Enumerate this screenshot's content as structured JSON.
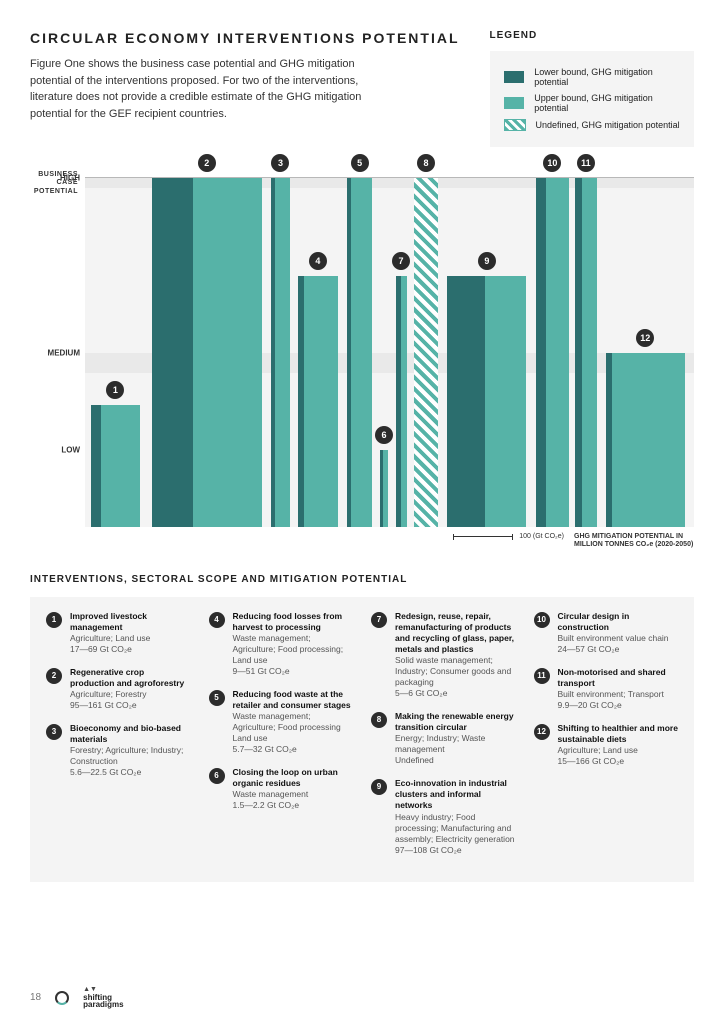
{
  "header": {
    "title": "CIRCULAR ECONOMY INTERVENTIONS POTENTIAL",
    "intro": "Figure One shows the business case potential and GHG mitigation potential of the interventions proposed. For two of the interventions, literature does not provide a credible estimate of the GHG mitigation potential for the GEF recipient countries."
  },
  "legend": {
    "title": "LEGEND",
    "items": [
      {
        "swatch": "dark",
        "label": "Lower bound, GHG mitigation potential"
      },
      {
        "swatch": "light",
        "label": "Upper bound, GHG mitigation potential"
      },
      {
        "swatch": "hatch",
        "label": "Undefined, GHG mitigation potential"
      }
    ]
  },
  "chart": {
    "y_axis_label": "BUSINESS CASE POTENTIAL",
    "y_ticks": [
      {
        "label": "HIGH",
        "pct": 0
      },
      {
        "label": "MEDIUM",
        "pct": 50
      },
      {
        "label": "LOW",
        "pct": 78
      }
    ],
    "shaded_bands": [
      {
        "top_pct": 0,
        "height_pct": 3
      },
      {
        "top_pct": 50,
        "height_pct": 6
      }
    ],
    "x_scale_label": "100 (Gt CO₂e)",
    "x_scale_width_pct": 10,
    "x_note": "GHG MITIGATION POTENTIAL IN MILLION TONNES CO₂e (2020-2050)",
    "width_ref_gt": 166,
    "bars": [
      {
        "id": 1,
        "left_pct": 1,
        "width_pct": 8,
        "height_pct": 35,
        "lower": 17,
        "upper": 69,
        "type": "pair"
      },
      {
        "id": 2,
        "left_pct": 11,
        "width_pct": 18,
        "height_pct": 100,
        "lower": 95,
        "upper": 161,
        "type": "pair"
      },
      {
        "id": 3,
        "left_pct": 30.5,
        "width_pct": 3.2,
        "height_pct": 100,
        "lower": 5.6,
        "upper": 22.5,
        "type": "pair"
      },
      {
        "id": 4,
        "left_pct": 35,
        "width_pct": 6.5,
        "height_pct": 72,
        "lower": 9,
        "upper": 51,
        "type": "pair"
      },
      {
        "id": 5,
        "left_pct": 43,
        "width_pct": 4.2,
        "height_pct": 100,
        "lower": 5.7,
        "upper": 32,
        "type": "pair"
      },
      {
        "id": 6,
        "left_pct": 48.5,
        "width_pct": 1.2,
        "height_pct": 22,
        "lower": 1.5,
        "upper": 2.2,
        "type": "pair"
      },
      {
        "id": 7,
        "left_pct": 51,
        "width_pct": 1.8,
        "height_pct": 72,
        "lower": 5,
        "upper": 6,
        "type": "pair"
      },
      {
        "id": 8,
        "left_pct": 54,
        "width_pct": 4,
        "height_pct": 100,
        "type": "hatch"
      },
      {
        "id": 9,
        "left_pct": 59.5,
        "width_pct": 13,
        "height_pct": 72,
        "lower": 97,
        "upper": 108,
        "type": "pair"
      },
      {
        "id": 10,
        "left_pct": 74,
        "width_pct": 5.5,
        "height_pct": 100,
        "lower": 24,
        "upper": 57,
        "type": "pair"
      },
      {
        "id": 11,
        "left_pct": 80.5,
        "width_pct": 3.5,
        "height_pct": 100,
        "lower": 9.9,
        "upper": 20,
        "type": "pair"
      },
      {
        "id": 12,
        "left_pct": 85.5,
        "width_pct": 13,
        "height_pct": 50,
        "lower": 15,
        "upper": 166,
        "type": "pair"
      }
    ],
    "colors": {
      "lower": "#2b6e6e",
      "upper": "#56b3a7",
      "bg": "#f4f4f4",
      "panel": "#e9e9e9"
    }
  },
  "interventions": {
    "title": "INTERVENTIONS, SECTORAL SCOPE AND MITIGATION POTENTIAL",
    "items": [
      {
        "n": 1,
        "name": "Improved livestock management",
        "sectors": "Agriculture; Land use",
        "range": "17—69 Gt CO₂e"
      },
      {
        "n": 2,
        "name": "Regenerative crop production and agroforestry",
        "sectors": "Agriculture; Forestry",
        "range": "95—161 Gt CO₂e"
      },
      {
        "n": 3,
        "name": "Bioeconomy and bio-based materials",
        "sectors": "Forestry; Agriculture; Industry; Construction",
        "range": "5.6—22.5 Gt CO₂e"
      },
      {
        "n": 4,
        "name": "Reducing food losses from harvest to processing",
        "sectors": "Waste management; Agriculture; Food processing; Land use",
        "range": "9—51 Gt CO₂e"
      },
      {
        "n": 5,
        "name": "Reducing food waste at the retailer and consumer stages",
        "sectors": "Waste management; Agriculture; Food processing Land use",
        "range": "5.7—32 Gt CO₂e"
      },
      {
        "n": 6,
        "name": "Closing the loop on urban organic residues",
        "sectors": "Waste management",
        "range": "1.5—2.2 Gt CO₂e"
      },
      {
        "n": 7,
        "name": "Redesign, reuse, repair, remanufacturing of products and recycling of glass, paper, metals and plastics",
        "sectors": "Solid waste management; Industry; Consumer goods and packaging",
        "range": "5—6 Gt CO₂e"
      },
      {
        "n": 8,
        "name": "Making the renewable energy transition circular",
        "sectors": "Energy; Industry; Waste management",
        "range": "Undefined"
      },
      {
        "n": 9,
        "name": "Eco-innovation in industrial clusters and informal networks",
        "sectors": "Heavy industry; Food processing; Manufacturing and assembly; Electricity generation",
        "range": "97—108 Gt CO₂e"
      },
      {
        "n": 10,
        "name": "Circular design in construction",
        "sectors": "Built environment value chain",
        "range": "24—57 Gt CO₂e"
      },
      {
        "n": 11,
        "name": "Non-motorised and shared transport",
        "sectors": "Built environment; Transport",
        "range": "9.9—20 Gt CO₂e"
      },
      {
        "n": 12,
        "name": "Shifting to healthier and more sustainable diets",
        "sectors": "Agriculture; Land use",
        "range": "15—166 Gt CO₂e"
      }
    ],
    "columns": [
      [
        1,
        2,
        3
      ],
      [
        4,
        5,
        6
      ],
      [
        7,
        8,
        9
      ],
      [
        10,
        11,
        12
      ]
    ]
  },
  "footer": {
    "page": "18",
    "brand": "shifting paradigms"
  }
}
